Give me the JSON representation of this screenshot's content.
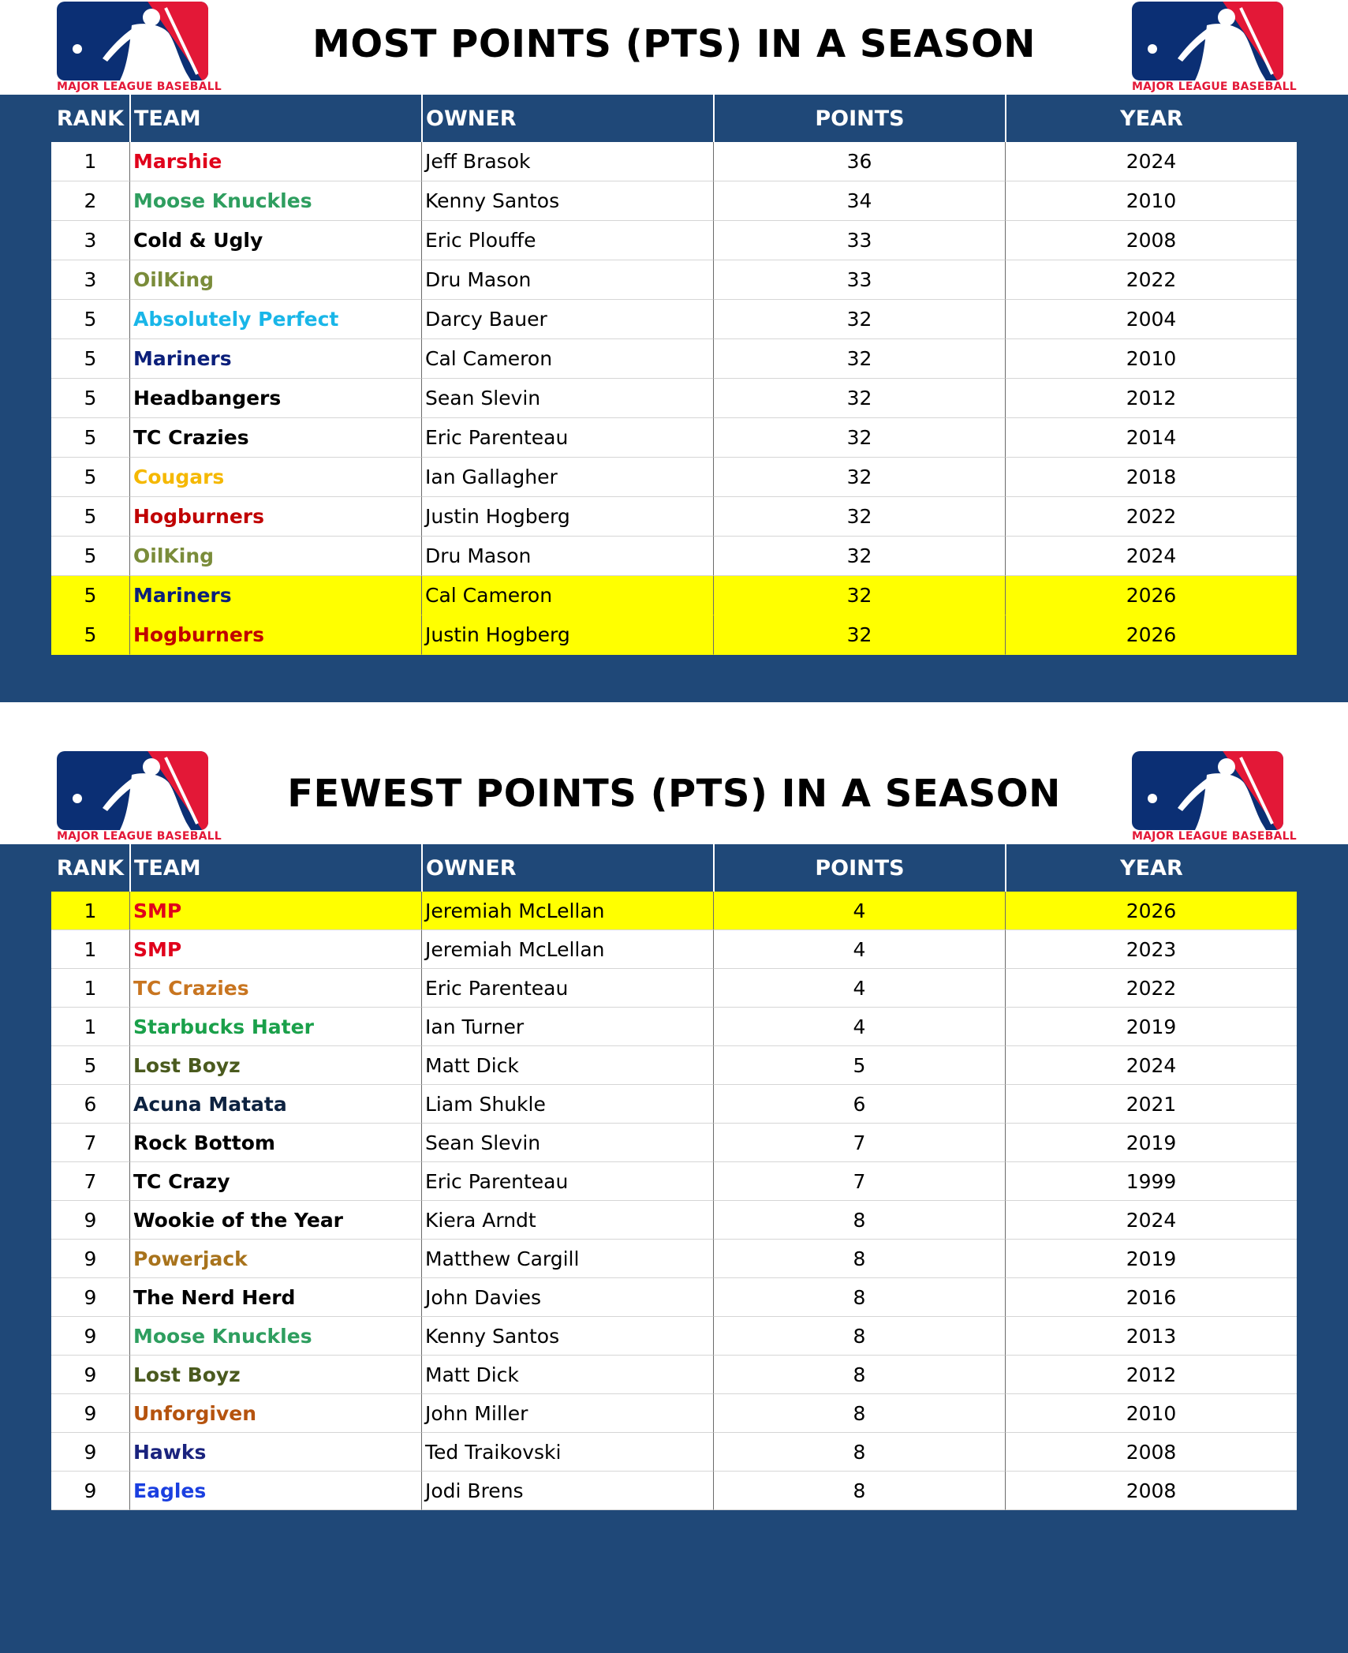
{
  "logo": {
    "wordmark": "MAJOR LEAGUE BASEBALL"
  },
  "columns": {
    "rank": "RANK",
    "team": "TEAM",
    "owner": "OWNER",
    "points": "POINTS",
    "year": "YEAR"
  },
  "most": {
    "title": "MOST POINTS (PTS) IN A SEASON",
    "rows": [
      {
        "rank": "1",
        "team": "Marshie",
        "team_color": "#e0001b",
        "owner": "Jeff Brasok",
        "points": "36",
        "year": "2024",
        "highlight": false
      },
      {
        "rank": "2",
        "team": "Moose Knuckles",
        "team_color": "#2e9e5f",
        "owner": "Kenny Santos",
        "points": "34",
        "year": "2010",
        "highlight": false
      },
      {
        "rank": "3",
        "team": "Cold & Ugly",
        "team_color": "#000000",
        "owner": "Eric Plouffe",
        "points": "33",
        "year": "2008",
        "highlight": false
      },
      {
        "rank": "3",
        "team": "OilKing",
        "team_color": "#7a8c3a",
        "owner": "Dru Mason",
        "points": "33",
        "year": "2022",
        "highlight": false
      },
      {
        "rank": "5",
        "team": "Absolutely Perfect",
        "team_color": "#19b6e8",
        "owner": "Darcy Bauer",
        "points": "32",
        "year": "2004",
        "highlight": false
      },
      {
        "rank": "5",
        "team": "Mariners",
        "team_color": "#0b1f7a",
        "owner": "Cal Cameron",
        "points": "32",
        "year": "2010",
        "highlight": false
      },
      {
        "rank": "5",
        "team": "Headbangers",
        "team_color": "#000000",
        "owner": "Sean Slevin",
        "points": "32",
        "year": "2012",
        "highlight": false
      },
      {
        "rank": "5",
        "team": "TC Crazies",
        "team_color": "#000000",
        "owner": "Eric Parenteau",
        "points": "32",
        "year": "2014",
        "highlight": false
      },
      {
        "rank": "5",
        "team": "Cougars",
        "team_color": "#f5b800",
        "owner": "Ian Gallagher",
        "points": "32",
        "year": "2018",
        "highlight": false
      },
      {
        "rank": "5",
        "team": "Hogburners",
        "team_color": "#c00000",
        "owner": "Justin Hogberg",
        "points": "32",
        "year": "2022",
        "highlight": false
      },
      {
        "rank": "5",
        "team": "OilKing",
        "team_color": "#7a8c3a",
        "owner": "Dru Mason",
        "points": "32",
        "year": "2024",
        "highlight": false
      },
      {
        "rank": "5",
        "team": "Mariners",
        "team_color": "#0b1f7a",
        "owner": "Cal Cameron",
        "points": "32",
        "year": "2026",
        "highlight": true
      },
      {
        "rank": "5",
        "team": "Hogburners",
        "team_color": "#c00000",
        "owner": "Justin Hogberg",
        "points": "32",
        "year": "2026",
        "highlight": true
      }
    ]
  },
  "fewest": {
    "title": "FEWEST POINTS (PTS) IN A SEASON",
    "rows": [
      {
        "rank": "1",
        "team": "SMP",
        "team_color": "#e0001b",
        "owner": "Jeremiah McLellan",
        "points": "4",
        "year": "2026",
        "highlight": true
      },
      {
        "rank": "1",
        "team": "SMP",
        "team_color": "#e0001b",
        "owner": "Jeremiah McLellan",
        "points": "4",
        "year": "2023",
        "highlight": false
      },
      {
        "rank": "1",
        "team": "TC Crazies",
        "team_color": "#c87520",
        "owner": "Eric Parenteau",
        "points": "4",
        "year": "2022",
        "highlight": false
      },
      {
        "rank": "1",
        "team": "Starbucks Hater",
        "team_color": "#1aa04a",
        "owner": "Ian Turner",
        "points": "4",
        "year": "2019",
        "highlight": false
      },
      {
        "rank": "5",
        "team": "Lost Boyz",
        "team_color": "#4a5a1e",
        "owner": "Matt Dick",
        "points": "5",
        "year": "2024",
        "highlight": false
      },
      {
        "rank": "6",
        "team": "Acuna Matata",
        "team_color": "#0d2240",
        "owner": "Liam Shukle",
        "points": "6",
        "year": "2021",
        "highlight": false
      },
      {
        "rank": "7",
        "team": "Rock Bottom",
        "team_color": "#000000",
        "owner": "Sean Slevin",
        "points": "7",
        "year": "2019",
        "highlight": false
      },
      {
        "rank": "7",
        "team": "TC Crazy",
        "team_color": "#000000",
        "owner": "Eric Parenteau",
        "points": "7",
        "year": "1999",
        "highlight": false
      },
      {
        "rank": "9",
        "team": "Wookie of the Year",
        "team_color": "#000000",
        "owner": "Kiera Arndt",
        "points": "8",
        "year": "2024",
        "highlight": false
      },
      {
        "rank": "9",
        "team": "Powerjack",
        "team_color": "#a8731c",
        "owner": "Matthew Cargill",
        "points": "8",
        "year": "2019",
        "highlight": false
      },
      {
        "rank": "9",
        "team": "The Nerd Herd",
        "team_color": "#000000",
        "owner": "John Davies",
        "points": "8",
        "year": "2016",
        "highlight": false
      },
      {
        "rank": "9",
        "team": "Moose Knuckles",
        "team_color": "#2e9e5f",
        "owner": "Kenny Santos",
        "points": "8",
        "year": "2013",
        "highlight": false
      },
      {
        "rank": "9",
        "team": "Lost Boyz",
        "team_color": "#4a5a1e",
        "owner": "Matt Dick",
        "points": "8",
        "year": "2012",
        "highlight": false
      },
      {
        "rank": "9",
        "team": "Unforgiven",
        "team_color": "#b5530e",
        "owner": "John Miller",
        "points": "8",
        "year": "2010",
        "highlight": false
      },
      {
        "rank": "9",
        "team": "Hawks",
        "team_color": "#1a237e",
        "owner": "Ted Traikovski",
        "points": "8",
        "year": "2008",
        "highlight": false
      },
      {
        "rank": "9",
        "team": "Eagles",
        "team_color": "#1a3fe0",
        "owner": "Jodi Brens",
        "points": "8",
        "year": "2008",
        "highlight": false
      }
    ]
  }
}
